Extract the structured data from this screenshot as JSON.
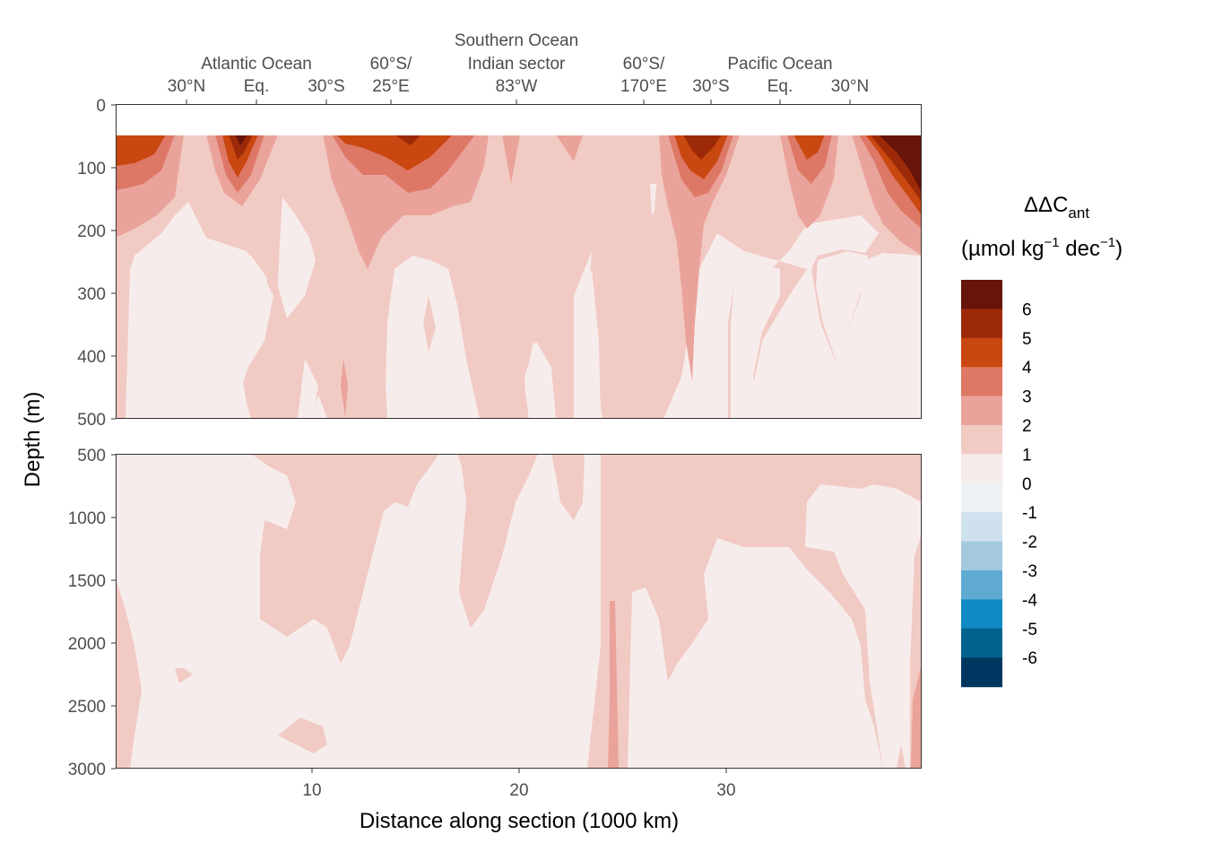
{
  "chart_data": {
    "type": "heatmap",
    "xlabel": "Distance along section (1000 km)",
    "ylabel": "Depth (m)",
    "x_ticks": [
      10,
      20,
      30
    ],
    "xlim": [
      0.4,
      39.4
    ],
    "panels": [
      {
        "name": "upper",
        "ylim": [
          0,
          500
        ],
        "y_ticks": [
          0,
          100,
          200,
          300,
          400,
          500
        ]
      },
      {
        "name": "lower",
        "ylim": [
          500,
          3000
        ],
        "y_ticks": [
          500,
          1000,
          1500,
          2000,
          2500,
          3000
        ]
      }
    ],
    "top_axis": {
      "ticks": [
        {
          "x": 3.9,
          "label": "30°N"
        },
        {
          "x": 7.3,
          "label": "Eq."
        },
        {
          "x": 10.7,
          "label": "30°S"
        },
        {
          "x": 13.8,
          "label": "60°S/\n25°E"
        },
        {
          "x": 19.9,
          "label": "83°W"
        },
        {
          "x": 26.1,
          "label": "60°S/\n170°E"
        },
        {
          "x": 29.4,
          "label": "30°S"
        },
        {
          "x": 32.7,
          "label": "Eq."
        },
        {
          "x": 36.1,
          "label": "30°N"
        }
      ],
      "regions": [
        {
          "x": 7.3,
          "label": "Atlantic Ocean"
        },
        {
          "x": 19.9,
          "label": "Southern Ocean\nIndian sector"
        },
        {
          "x": 32.7,
          "label": "Pacific Ocean"
        }
      ]
    },
    "legend": {
      "title_main": "ΔΔC",
      "title_sub": "ant",
      "units_pre": "(µmol kg",
      "units_exp1": "−1",
      "units_mid": " dec",
      "units_exp2": "−1",
      "units_post": ")",
      "placement": "right",
      "labels": [
        "6",
        "5",
        "4",
        "3",
        "2",
        "1",
        "0",
        "-1",
        "-2",
        "-3",
        "-4",
        "-5",
        "-6"
      ],
      "colors": [
        "#67140a",
        "#9c2a08",
        "#c94710",
        "#de7866",
        "#eaa39a",
        "#f1cac4",
        "#f7ecec",
        "#eef1f4",
        "#d0e1ee",
        "#a4c9df",
        "#5eaad0",
        "#0f8ac4",
        "#01628e",
        "#003760"
      ]
    },
    "surface_data_gap_m": [
      0,
      50
    ],
    "fields": {
      "upper": [
        {
          "level": 0,
          "x": [
            0.4,
            39.4
          ],
          "description": "background"
        },
        {
          "level": 1,
          "description": "broad band 0-1 dominant"
        },
        {
          "level": 2,
          "description": "upper 250 m, mid sections"
        },
        {
          "level": 3,
          "description": "surface maxima"
        },
        {
          "level": 4,
          "description": "surface maxima"
        },
        {
          "level": 5,
          "description": "surface maxima"
        },
        {
          "level": 6,
          "description": "North Pacific surface"
        }
      ]
    }
  }
}
